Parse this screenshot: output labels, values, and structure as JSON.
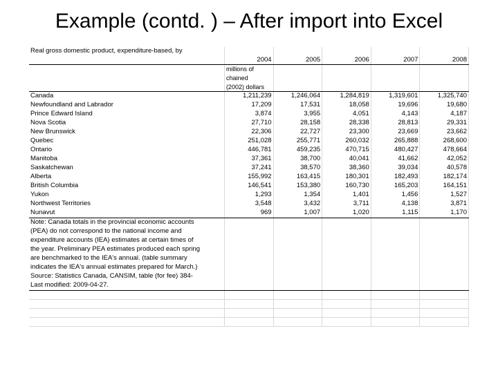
{
  "slide": {
    "title": "Example (contd. ) – After import into Excel"
  },
  "table": {
    "header_label": "Real gross domestic product, expenditure-based, by",
    "years": [
      "2004",
      "2005",
      "2006",
      "2007",
      "2008"
    ],
    "unit_lines": [
      "millions of",
      "chained",
      "(2002) dollars"
    ],
    "rows": [
      {
        "label": "Canada",
        "v": [
          "1,211,239",
          "1,246,064",
          "1,284,819",
          "1,319,601",
          "1,325,740"
        ]
      },
      {
        "label": "Newfoundland and Labrador",
        "v": [
          "17,209",
          "17,531",
          "18,058",
          "19,696",
          "19,680"
        ]
      },
      {
        "label": "Prince Edward Island",
        "v": [
          "3,874",
          "3,955",
          "4,051",
          "4,143",
          "4,187"
        ]
      },
      {
        "label": "Nova Scotia",
        "v": [
          "27,710",
          "28,158",
          "28,338",
          "28,813",
          "29,331"
        ]
      },
      {
        "label": "New Brunswick",
        "v": [
          "22,306",
          "22,727",
          "23,300",
          "23,669",
          "23,662"
        ]
      },
      {
        "label": "Quebec",
        "v": [
          "251,028",
          "255,771",
          "260,032",
          "265,888",
          "268,600"
        ]
      },
      {
        "label": "Ontario",
        "v": [
          "446,781",
          "459,235",
          "470,715",
          "480,427",
          "478,664"
        ]
      },
      {
        "label": "Manitoba",
        "v": [
          "37,361",
          "38,700",
          "40,041",
          "41,662",
          "42,052"
        ]
      },
      {
        "label": "Saskatchewan",
        "v": [
          "37,241",
          "38,570",
          "38,360",
          "39,034",
          "40,578"
        ]
      },
      {
        "label": "Alberta",
        "v": [
          "155,992",
          "163,415",
          "180,301",
          "182,493",
          "182,174"
        ]
      },
      {
        "label": "British Columbia",
        "v": [
          "146,541",
          "153,380",
          "160,730",
          "165,203",
          "164,151"
        ]
      },
      {
        "label": "Yukon",
        "v": [
          "1,293",
          "1,354",
          "1,401",
          "1,456",
          "1,527"
        ]
      },
      {
        "label": "Northwest Territories",
        "v": [
          "3,548",
          "3,432",
          "3,711",
          "4,138",
          "3,871"
        ]
      },
      {
        "label": "Nunavut",
        "v": [
          "969",
          "1,007",
          "1,020",
          "1,115",
          "1,170"
        ]
      }
    ],
    "notes": [
      "Note: Canada totals in the provincial economic accounts",
      "(PEA) do not correspond to the national income and",
      "expenditure accounts (IEA) estimates at certain times of",
      "the year. Preliminary PEA estimates produced each spring",
      "are benchmarked to the IEA's annual. (table summary",
      "indicates the IEA's annual estimates prepared for March.)",
      "Source: Statistics Canada, CANSIM, table (for fee) 384-",
      "Last modified: 2009-04-27."
    ]
  },
  "colors": {
    "divider": "#000000",
    "grid": "#d8d8d8"
  }
}
